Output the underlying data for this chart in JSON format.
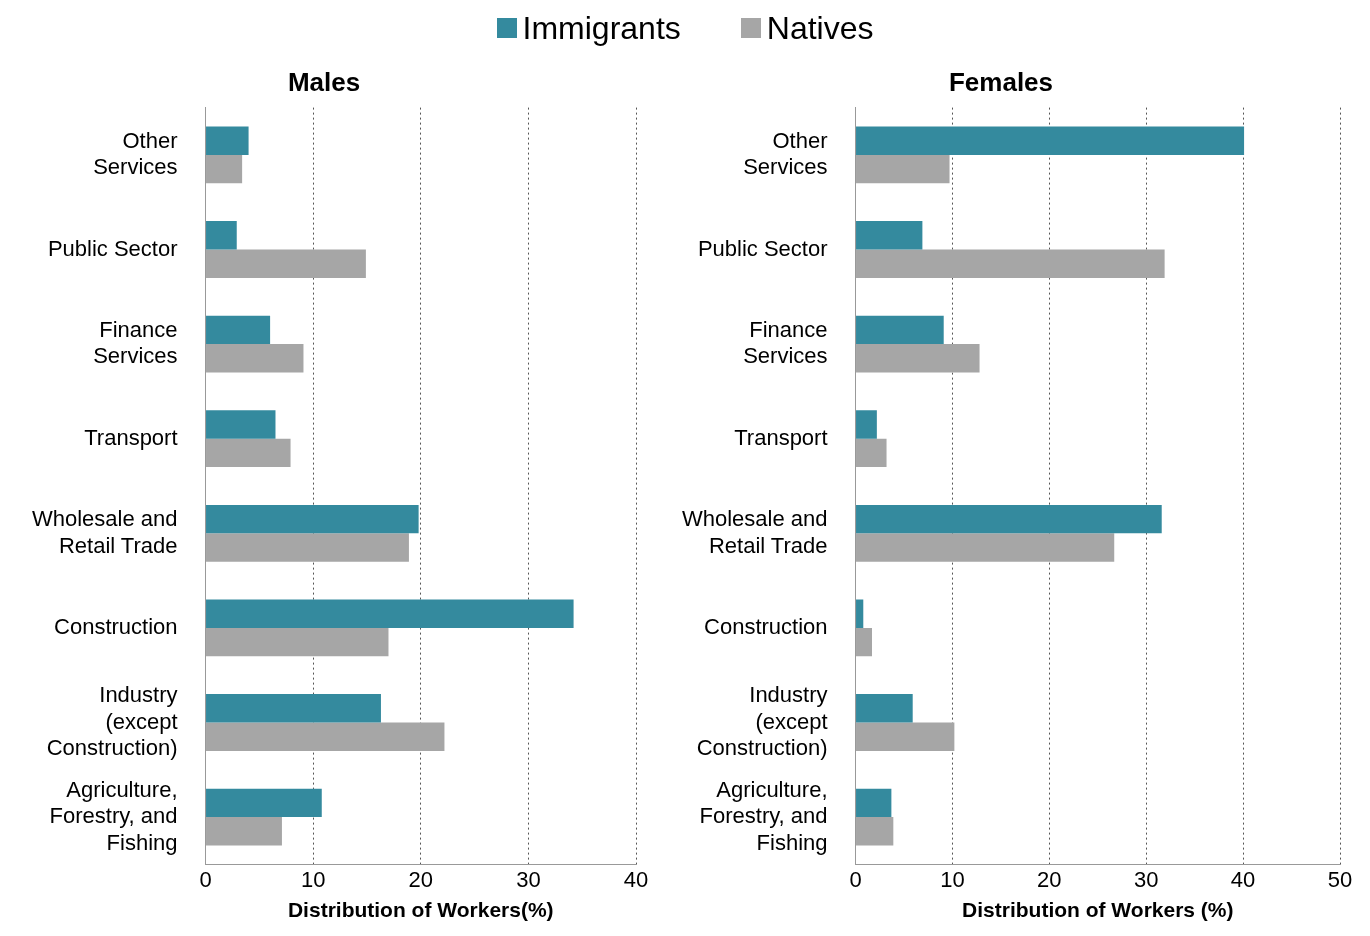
{
  "chart_data": [
    {
      "type": "bar",
      "orientation": "horizontal",
      "title": "Males",
      "xlabel": "Distribution of Workers(%)",
      "categories": [
        "Other Services",
        "Public Sector",
        "Finance Services",
        "Transport",
        "Wholesale and Retail Trade",
        "Construction",
        "Industry (except Construction)",
        "Agriculture, Forestry, and Fishing"
      ],
      "series": [
        {
          "name": "Immigrants",
          "color": "#348a9e",
          "values": [
            4.0,
            2.9,
            6.0,
            6.5,
            19.8,
            34.2,
            16.3,
            10.8
          ]
        },
        {
          "name": "Natives",
          "color": "#a6a6a6",
          "values": [
            3.4,
            14.9,
            9.1,
            7.9,
            18.9,
            17.0,
            22.2,
            7.1
          ]
        }
      ],
      "xlim": [
        0,
        40
      ],
      "xticks": [
        0,
        10,
        20,
        30,
        40
      ],
      "grid": "x",
      "legend": "top"
    },
    {
      "type": "bar",
      "orientation": "horizontal",
      "title": "Females",
      "xlabel": "Distribution of Workers (%)",
      "categories": [
        "Other Services",
        "Public Sector",
        "Finance Services",
        "Transport",
        "Wholesale and Retail Trade",
        "Construction",
        "Industry (except Construction)",
        "Agriculture, Forestry, and Fishing"
      ],
      "series": [
        {
          "color": "#348a9e",
          "values": [
            40.1,
            6.9,
            9.1,
            2.2,
            31.6,
            0.8,
            5.9,
            3.7
          ]
        },
        {
          "color": "#a6a6a6",
          "values": [
            9.7,
            31.9,
            12.8,
            3.2,
            26.7,
            1.7,
            10.2,
            3.9
          ]
        }
      ],
      "xlim": [
        0,
        50
      ],
      "xticks": [
        0,
        10,
        20,
        30,
        40,
        50
      ],
      "grid": "x"
    }
  ]
}
